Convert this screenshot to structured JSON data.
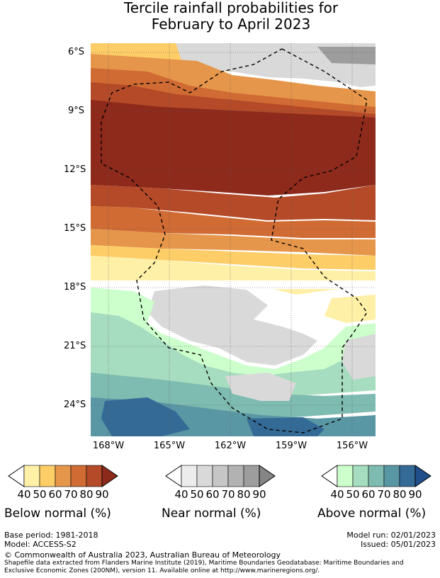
{
  "title": {
    "line1": "Tercile rainfall probabilities for",
    "line2": "February to April 2023"
  },
  "map": {
    "lat_labels": [
      "6°S",
      "9°S",
      "12°S",
      "15°S",
      "18°S",
      "21°S",
      "24°S"
    ],
    "lon_labels": [
      "168°W",
      "165°W",
      "162°W",
      "159°W",
      "156°W"
    ],
    "boundary": "dashed EEZ outline"
  },
  "legends": [
    {
      "title": "Below normal (%)",
      "ticks": [
        "40",
        "50",
        "60",
        "70",
        "80",
        "90"
      ],
      "colors": [
        "#fff0a8",
        "#fdcd68",
        "#e6964a",
        "#d06b34",
        "#b44a28",
        "#8e2a1c"
      ]
    },
    {
      "title": "Near normal (%)",
      "ticks": [
        "40",
        "50",
        "60",
        "70",
        "80",
        "90"
      ],
      "colors": [
        "#ececec",
        "#d9d9d9",
        "#c6c6c6",
        "#b2b2b2",
        "#9d9d9d",
        "#858585"
      ]
    },
    {
      "title": "Above normal (%)",
      "ticks": [
        "40",
        "50",
        "60",
        "70",
        "80",
        "90"
      ],
      "colors": [
        "#ccffcc",
        "#a6dcbf",
        "#7ebbb0",
        "#5a97a4",
        "#346a96",
        "#1f4e8a"
      ]
    }
  ],
  "footer": {
    "base_period": "Base period: 1981-2018",
    "model": "Model: ACCESS-S2",
    "model_run": "Model run: 02/01/2023",
    "issued": "Issued: 05/01/2023",
    "copyright": "© Commonwealth of Australia 2023, Australian Bureau of Meteorology",
    "shapefile_line1": "Shapefile data extracted from Flanders Marine Institute (2019), Maritime Boundaries Geodatabase: Maritime Boundaries and",
    "shapefile_line2": "Exclusive Economic Zones (200NM), version 11. Available online at http://www.marineregions.org/."
  }
}
